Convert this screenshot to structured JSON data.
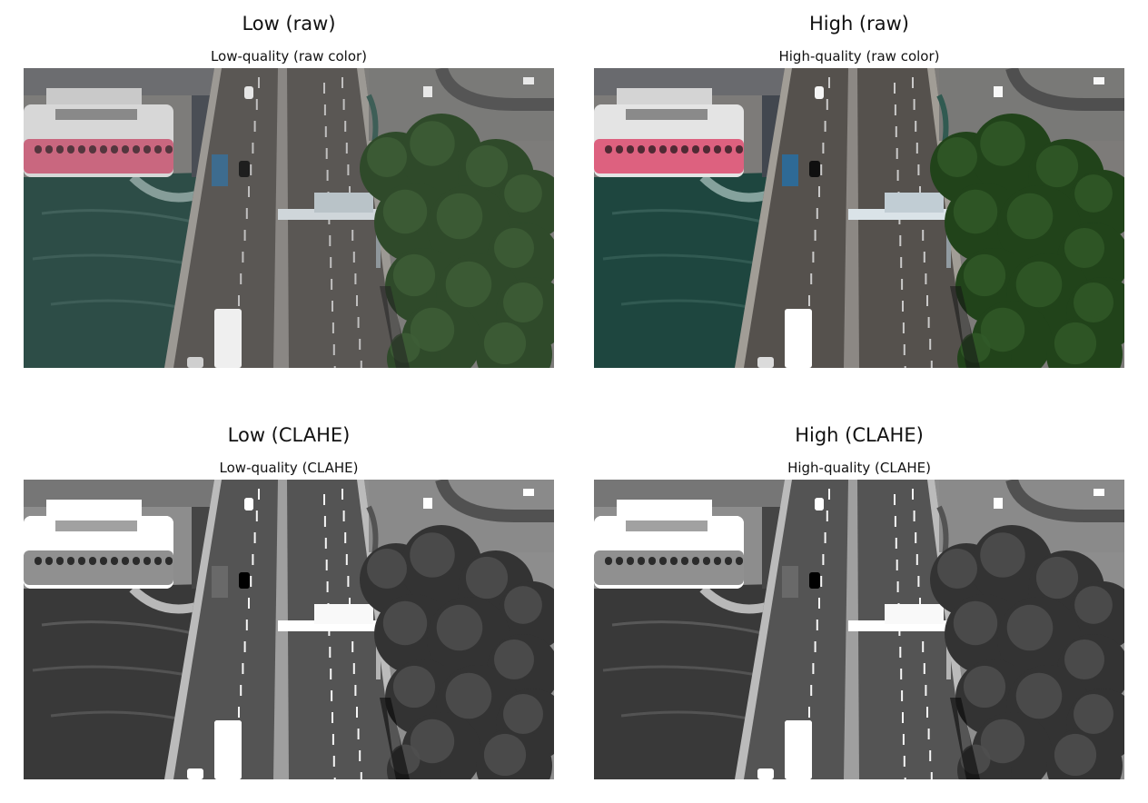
{
  "panels": [
    {
      "title": "Low (raw)",
      "subtitle": "Low-quality (raw color)",
      "mode": "color",
      "quality": "low"
    },
    {
      "title": "High (raw)",
      "subtitle": "High-quality (raw color)",
      "mode": "color",
      "quality": "high"
    },
    {
      "title": "Low (CLAHE)",
      "subtitle": "Low-quality (CLAHE)",
      "mode": "gray",
      "quality": "low"
    },
    {
      "title": "High (CLAHE)",
      "subtitle": "High-quality (CLAHE)",
      "mode": "gray",
      "quality": "high"
    }
  ],
  "colors": {
    "water": "#2d4d47",
    "road": "#5a5754",
    "foliage": "#2f4a2a",
    "dock": "#7d7c7a",
    "boat_hull": "#c9677f",
    "background": "#ffffff"
  }
}
